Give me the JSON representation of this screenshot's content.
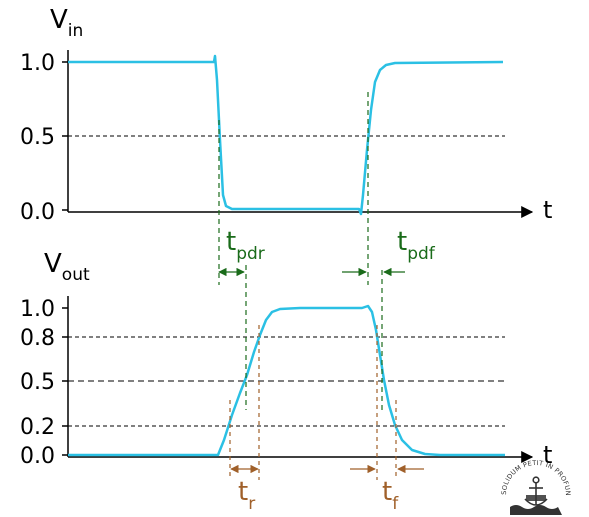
{
  "top_plot": {
    "y_label_main": "V",
    "y_label_sub": "in",
    "x_label": "t",
    "ticks": [
      "1.0",
      "0.5",
      "0.0"
    ]
  },
  "bottom_plot": {
    "y_label_main": "V",
    "y_label_sub": "out",
    "x_label": "t",
    "ticks": [
      "1.0",
      "0.8",
      "0.5",
      "0.2",
      "0.0"
    ]
  },
  "annotations": {
    "tpdr_main": "t",
    "tpdr_sub": "pdr",
    "tpdf_main": "t",
    "tpdf_sub": "pdf",
    "tr_main": "t",
    "tr_sub": "r",
    "tf_main": "t",
    "tf_sub": "f"
  },
  "colors": {
    "signal": "#2bc0e4",
    "propagation": "#1a6b1a",
    "transition": "#a0602a",
    "axis": "#000000"
  },
  "logo": {
    "text": "SOLIDUM PETIT IN PROFUNDIS"
  }
}
